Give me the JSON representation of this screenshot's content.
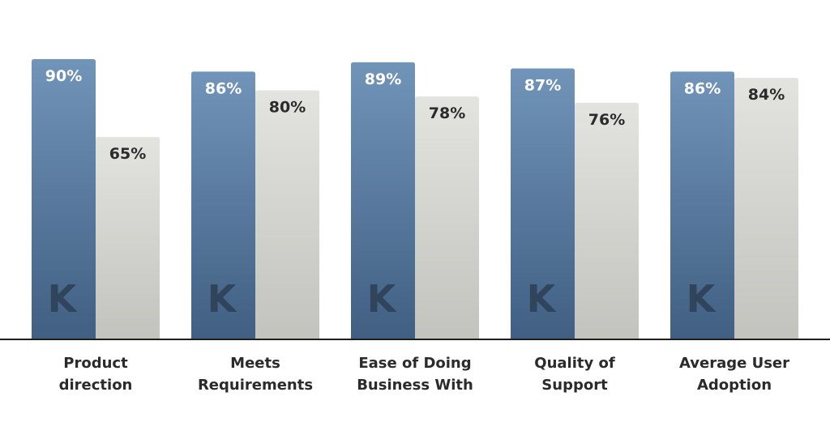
{
  "chart_data": {
    "type": "bar",
    "categories": [
      [
        "Product",
        "direction"
      ],
      [
        "Meets",
        "Requirements"
      ],
      [
        "Ease of Doing",
        "Business With"
      ],
      [
        "Quality of",
        "Support"
      ],
      [
        "Average User",
        "Adoption"
      ]
    ],
    "series": [
      {
        "values": [
          90,
          86,
          89,
          87,
          86
        ],
        "labels": [
          "90%",
          "86%",
          "89%",
          "87%",
          "86%"
        ],
        "color_top": "#7194b9",
        "color_bottom": "#405f82",
        "label_color": "#ffffff"
      },
      {
        "values": [
          65,
          80,
          78,
          76,
          84
        ],
        "labels": [
          "65%",
          "80%",
          "78%",
          "76%",
          "84%"
        ],
        "color_top": "#e3e3df",
        "color_bottom": "#c3c3be",
        "label_color": "#2b2b2b"
      }
    ],
    "ylim": [
      0,
      100
    ],
    "grid": false,
    "legend": "none",
    "watermark": "K",
    "watermark_color": "#30445c",
    "axis_color": "#1e1e1e"
  }
}
